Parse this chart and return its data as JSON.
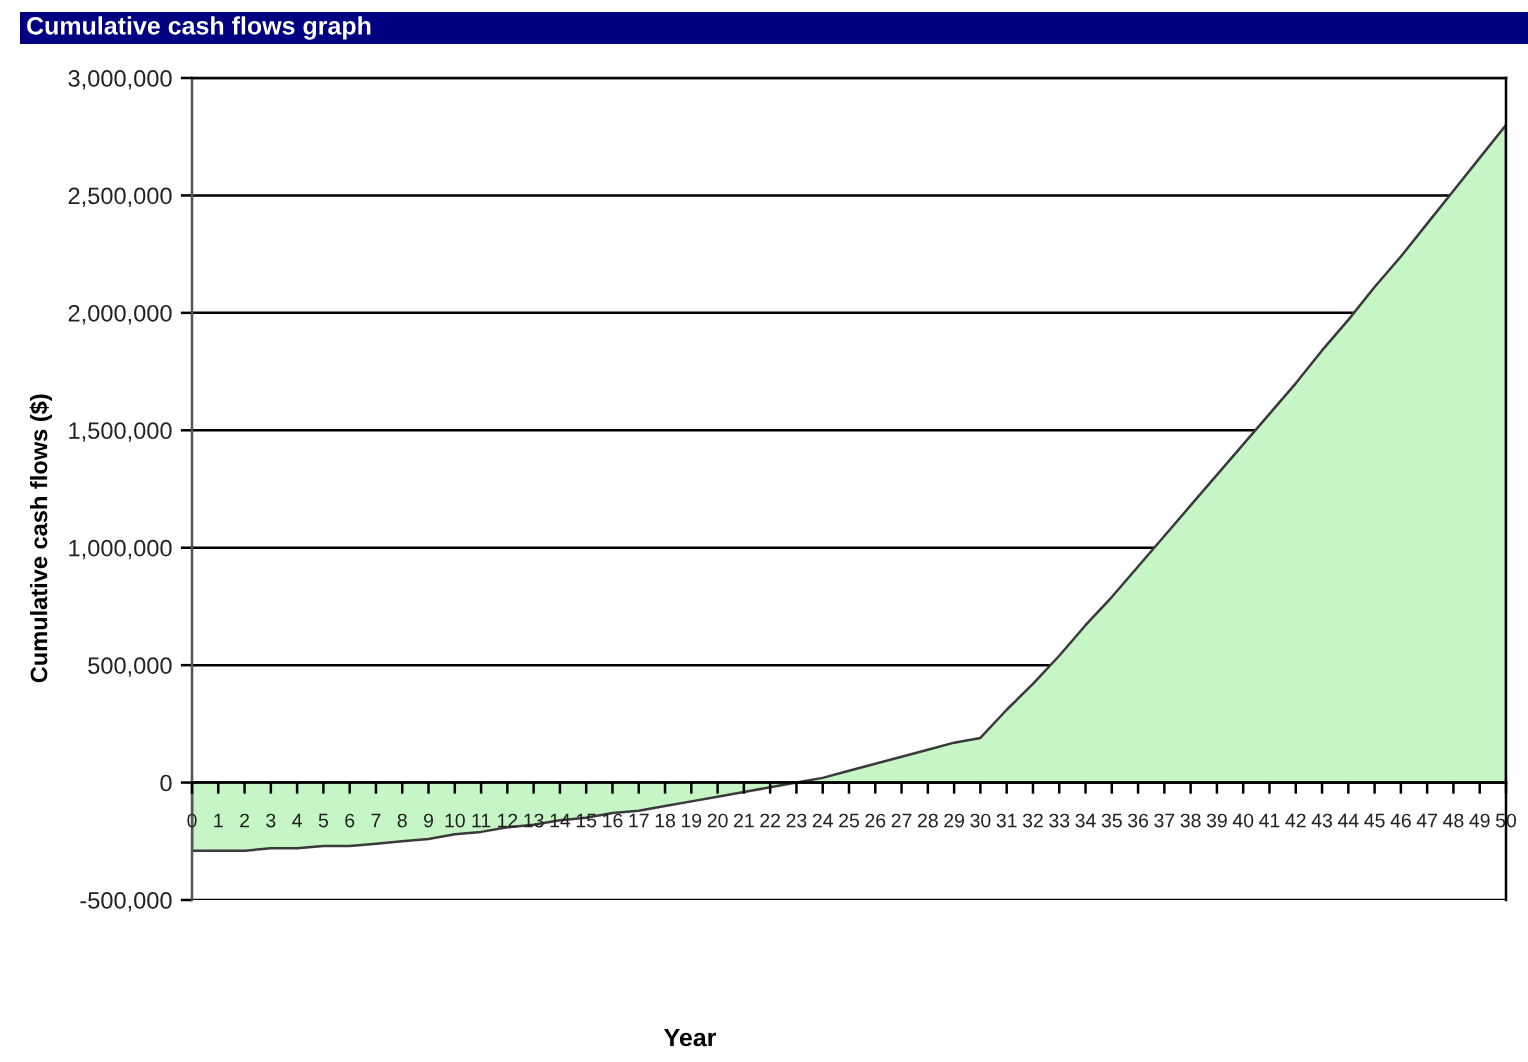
{
  "chart_data": {
    "type": "area",
    "title": "Cumulative cash flows graph",
    "xlabel": "Year",
    "ylabel": "Cumulative cash flows ($)",
    "categories": [
      "0",
      "1",
      "2",
      "3",
      "4",
      "5",
      "6",
      "7",
      "8",
      "9",
      "10",
      "11",
      "12",
      "13",
      "14",
      "15",
      "16",
      "17",
      "18",
      "19",
      "20",
      "21",
      "22",
      "23",
      "24",
      "25",
      "26",
      "27",
      "28",
      "29",
      "30",
      "31",
      "32",
      "33",
      "34",
      "35",
      "36",
      "37",
      "38",
      "39",
      "40",
      "41",
      "42",
      "43",
      "44",
      "45",
      "46",
      "47",
      "48",
      "49",
      "50"
    ],
    "values": [
      -290000,
      -290000,
      -290000,
      -280000,
      -280000,
      -270000,
      -270000,
      -260000,
      -250000,
      -240000,
      -220000,
      -210000,
      -190000,
      -180000,
      -160000,
      -150000,
      -130000,
      -120000,
      -100000,
      -80000,
      -60000,
      -40000,
      -20000,
      0,
      20000,
      50000,
      80000,
      110000,
      140000,
      170000,
      190000,
      310000,
      420000,
      540000,
      670000,
      790000,
      920000,
      1050000,
      1180000,
      1310000,
      1440000,
      1570000,
      1700000,
      1840000,
      1970000,
      2110000,
      2240000,
      2380000,
      2520000,
      2660000,
      2800000
    ],
    "color": "#c6f6c6",
    "ylim": [
      -500000,
      3000000
    ],
    "yticks": [
      {
        "value": -500000,
        "label": "-500,000"
      },
      0,
      {
        "value": 500000,
        "label": "500,000"
      },
      {
        "value": 1000000,
        "label": "1,000,000"
      },
      {
        "value": 1500000,
        "label": "1,500,000"
      },
      {
        "value": 2000000,
        "label": "2,000,000"
      },
      {
        "value": 2500000,
        "label": "2,500,000"
      },
      {
        "value": 3000000,
        "label": "3,000,000"
      }
    ],
    "grid": "y"
  }
}
